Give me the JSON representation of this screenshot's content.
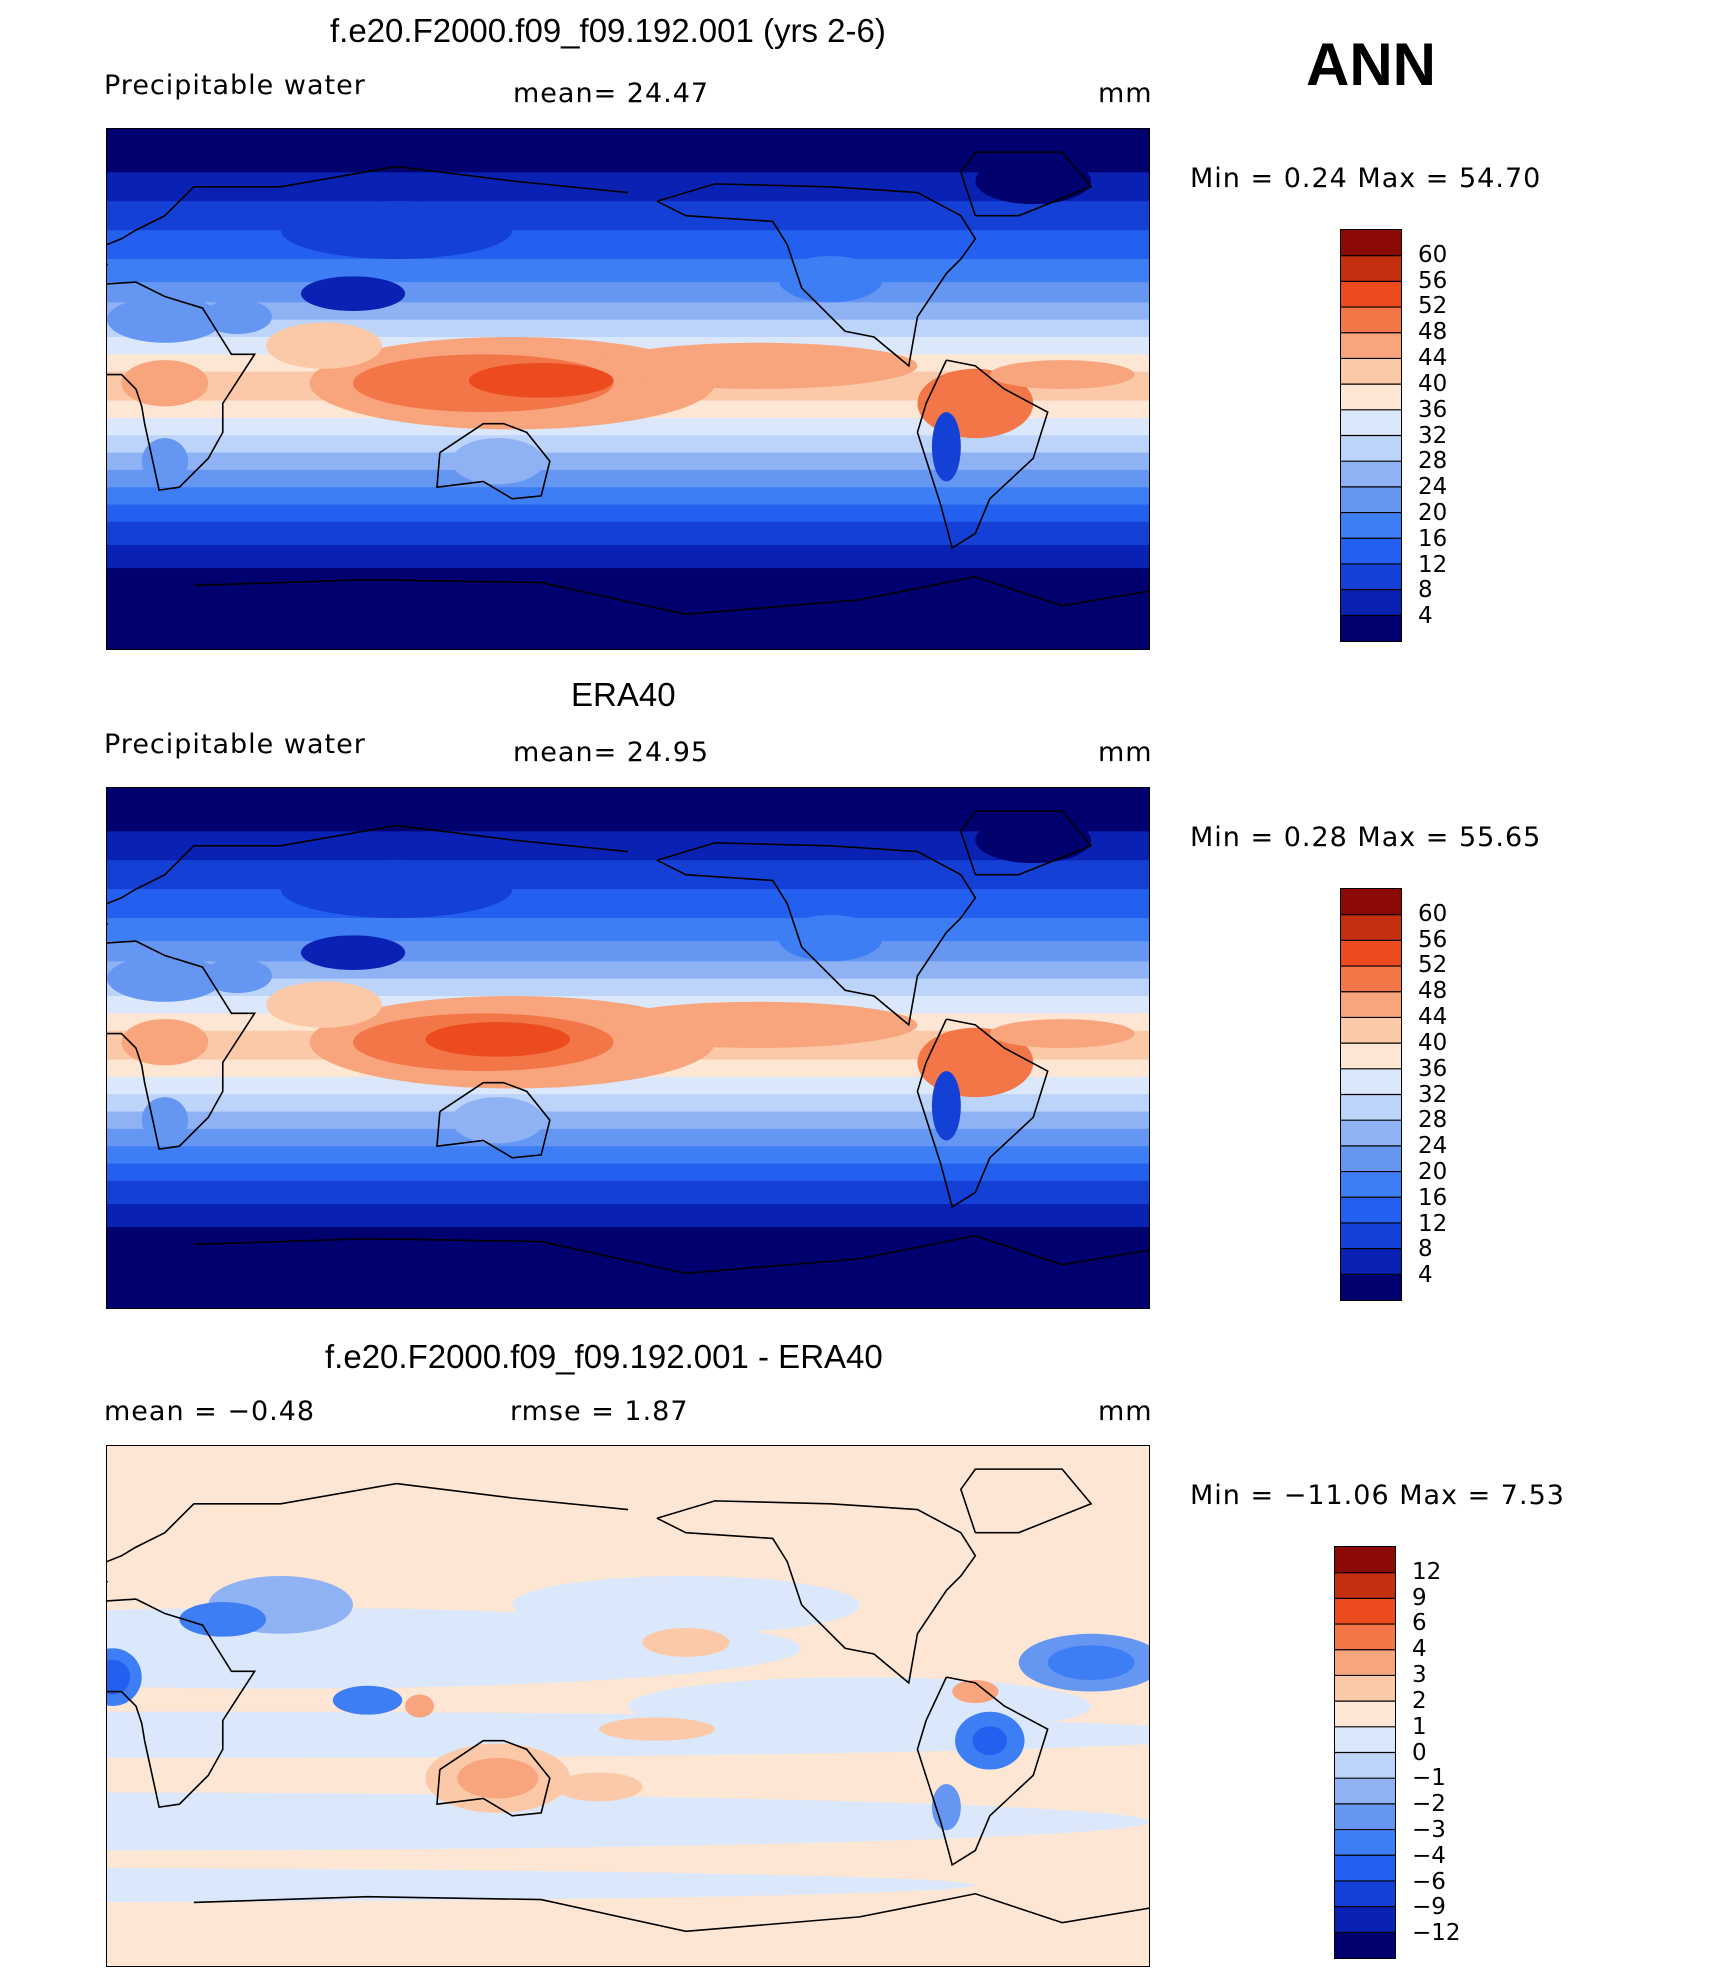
{
  "season": "ANN",
  "panels": [
    {
      "title": "f.e20.F2000.f09_f09.192.001 (yrs 2-6)",
      "left_label": "Precipitable  water",
      "center_label": "mean=   24.47",
      "unit": "mm",
      "minmax": "Min  =      0.24  Max  =     54.70"
    },
    {
      "title": "ERA40",
      "left_label": "Precipitable  water",
      "center_label": "mean=   24.95",
      "unit": "mm",
      "minmax": "Min  =      0.28  Max  =     55.65"
    },
    {
      "title": "f.e20.F2000.f09_f09.192.001 - ERA40",
      "left_label": "mean  =     −0.48",
      "center_label": "rmse  =      1.87",
      "unit": "mm",
      "minmax": "Min  = −11.06  Max  =      7.53"
    }
  ],
  "chart_data": [
    {
      "type": "heatmap",
      "title": "f.e20.F2000.f09_f09.192.001 (yrs 2-6)",
      "field": "Precipitable water",
      "units": "mm",
      "mean": 24.47,
      "min": 0.24,
      "max": 54.7,
      "levels": [
        "4",
        "8",
        "12",
        "16",
        "20",
        "24",
        "28",
        "32",
        "36",
        "40",
        "44",
        "48",
        "52",
        "56",
        "60"
      ],
      "colors": [
        "#00006e",
        "#0a22b4",
        "#1440d6",
        "#2460f0",
        "#3e7ef5",
        "#6596f2",
        "#8fb2f5",
        "#bcd4fa",
        "#dbe8fb",
        "#fde6d4",
        "#fbc9a8",
        "#f8a47c",
        "#f37648",
        "#ec4b1f",
        "#c42f10",
        "#8c0a05"
      ]
    },
    {
      "type": "heatmap",
      "title": "ERA40",
      "field": "Precipitable water",
      "units": "mm",
      "mean": 24.95,
      "min": 0.28,
      "max": 55.65,
      "levels": [
        "4",
        "8",
        "12",
        "16",
        "20",
        "24",
        "28",
        "32",
        "36",
        "40",
        "44",
        "48",
        "52",
        "56",
        "60"
      ],
      "colors": [
        "#00006e",
        "#0a22b4",
        "#1440d6",
        "#2460f0",
        "#3e7ef5",
        "#6596f2",
        "#8fb2f5",
        "#bcd4fa",
        "#dbe8fb",
        "#fde6d4",
        "#fbc9a8",
        "#f8a47c",
        "#f37648",
        "#ec4b1f",
        "#c42f10",
        "#8c0a05"
      ]
    },
    {
      "type": "heatmap",
      "title": "f.e20.F2000.f09_f09.192.001 - ERA40",
      "units": "mm",
      "mean": -0.48,
      "rmse": 1.87,
      "min": -11.06,
      "max": 7.53,
      "levels": [
        "−12",
        "−9",
        "−6",
        "−4",
        "−3",
        "−2",
        "−1",
        "0",
        "1",
        "2",
        "3",
        "4",
        "6",
        "9",
        "12"
      ],
      "colors": [
        "#00006e",
        "#0a22b4",
        "#1440d6",
        "#2460f0",
        "#3e7ef5",
        "#6596f2",
        "#8fb2f5",
        "#bcd4fa",
        "#dbe8fb",
        "#fde6d4",
        "#fbc9a8",
        "#f8a47c",
        "#f37648",
        "#ec4b1f",
        "#c42f10",
        "#8c0a05"
      ]
    }
  ]
}
